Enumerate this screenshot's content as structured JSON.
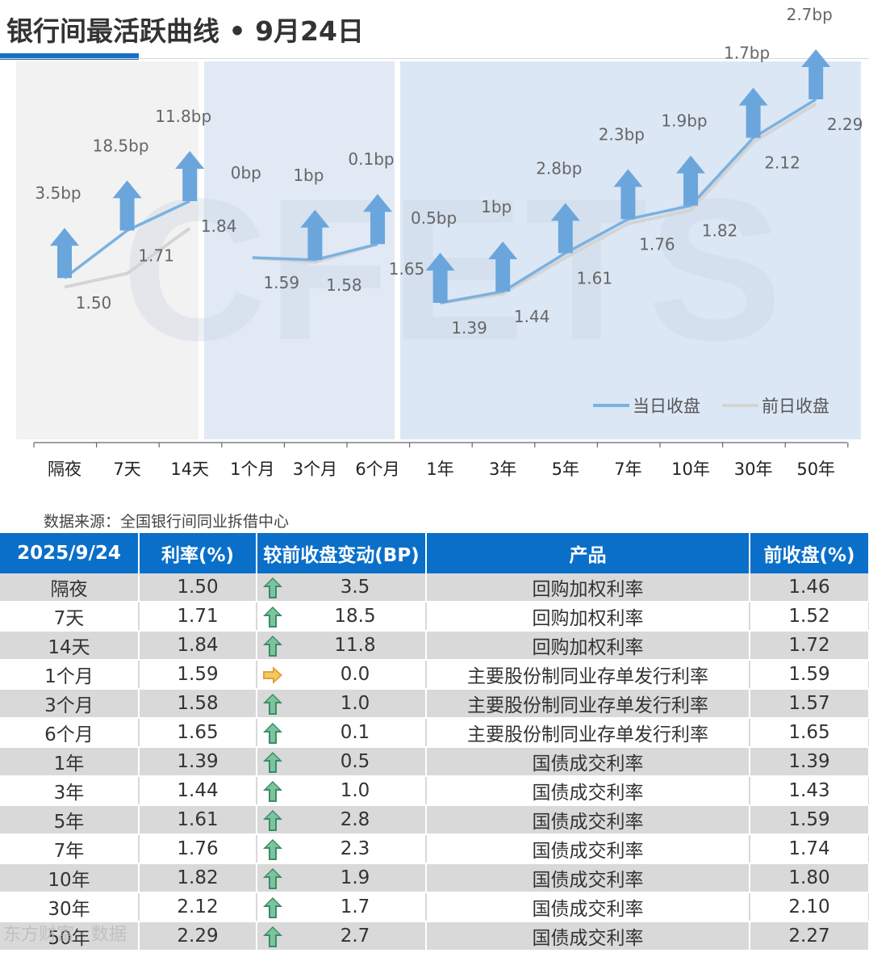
{
  "title": "银行间最活跃曲线 • 9月24日",
  "source": "数据来源：全国银行间同业拆借中心",
  "watermark": "东方财富 · 数据",
  "colors": {
    "today": "#7ab2e0",
    "prev": "#d4d4d4",
    "arrow": "#6aa6dc",
    "header": "#0a6fc9"
  },
  "chart_data": {
    "type": "line",
    "categories": [
      "隔夜",
      "7天",
      "14天",
      "1个月",
      "3个月",
      "6个月",
      "1年",
      "3年",
      "5年",
      "7年",
      "10年",
      "30年",
      "50年"
    ],
    "groups": [
      [
        0,
        1,
        2
      ],
      [
        3,
        4,
        5
      ],
      [
        6,
        7,
        8,
        9,
        10,
        11,
        12
      ]
    ],
    "series": [
      {
        "name": "当日收盘",
        "values": [
          1.5,
          1.71,
          1.84,
          1.59,
          1.58,
          1.65,
          1.39,
          1.44,
          1.61,
          1.76,
          1.82,
          2.12,
          2.29
        ]
      },
      {
        "name": "前日收盘",
        "values": [
          1.46,
          1.52,
          1.72,
          1.59,
          1.57,
          1.65,
          1.39,
          1.43,
          1.59,
          1.74,
          1.8,
          2.1,
          2.27
        ]
      }
    ],
    "change_labels": [
      "3.5bp",
      "18.5bp",
      "11.8bp",
      "0bp",
      "1bp",
      "0.1bp",
      "0.5bp",
      "1bp",
      "2.8bp",
      "2.3bp",
      "1.9bp",
      "1.7bp",
      "2.7bp"
    ],
    "value_labels": [
      "1.50",
      "1.71",
      "1.84",
      "1.59",
      "1.58",
      "1.65",
      "1.39",
      "1.44",
      "1.61",
      "1.76",
      "1.82",
      "2.12",
      "2.29"
    ],
    "legend": [
      "当日收盘",
      "前日收盘"
    ],
    "legend_position": "bottom-right",
    "watermark_text": "CFETS"
  },
  "table": {
    "headers": [
      "2025/9/24",
      "利率(%)",
      "较前收盘变动(BP)",
      "产品",
      "前收盘(%)"
    ],
    "rows": [
      {
        "tenor": "隔夜",
        "rate": "1.50",
        "dir": "up",
        "change": "3.5",
        "product": "回购加权利率",
        "prev": "1.46"
      },
      {
        "tenor": "7天",
        "rate": "1.71",
        "dir": "up",
        "change": "18.5",
        "product": "回购加权利率",
        "prev": "1.52"
      },
      {
        "tenor": "14天",
        "rate": "1.84",
        "dir": "up",
        "change": "11.8",
        "product": "回购加权利率",
        "prev": "1.72"
      },
      {
        "tenor": "1个月",
        "rate": "1.59",
        "dir": "flat",
        "change": "0.0",
        "product": "主要股份制同业存单发行利率",
        "prev": "1.59"
      },
      {
        "tenor": "3个月",
        "rate": "1.58",
        "dir": "up",
        "change": "1.0",
        "product": "主要股份制同业存单发行利率",
        "prev": "1.57"
      },
      {
        "tenor": "6个月",
        "rate": "1.65",
        "dir": "up",
        "change": "0.1",
        "product": "主要股份制同业存单发行利率",
        "prev": "1.65"
      },
      {
        "tenor": "1年",
        "rate": "1.39",
        "dir": "up",
        "change": "0.5",
        "product": "国债成交利率",
        "prev": "1.39"
      },
      {
        "tenor": "3年",
        "rate": "1.44",
        "dir": "up",
        "change": "1.0",
        "product": "国债成交利率",
        "prev": "1.43"
      },
      {
        "tenor": "5年",
        "rate": "1.61",
        "dir": "up",
        "change": "2.8",
        "product": "国债成交利率",
        "prev": "1.59"
      },
      {
        "tenor": "7年",
        "rate": "1.76",
        "dir": "up",
        "change": "2.3",
        "product": "国债成交利率",
        "prev": "1.74"
      },
      {
        "tenor": "10年",
        "rate": "1.82",
        "dir": "up",
        "change": "1.9",
        "product": "国债成交利率",
        "prev": "1.80"
      },
      {
        "tenor": "30年",
        "rate": "2.12",
        "dir": "up",
        "change": "1.7",
        "product": "国债成交利率",
        "prev": "2.10"
      },
      {
        "tenor": "50年",
        "rate": "2.29",
        "dir": "up",
        "change": "2.7",
        "product": "国债成交利率",
        "prev": "2.27"
      }
    ]
  }
}
